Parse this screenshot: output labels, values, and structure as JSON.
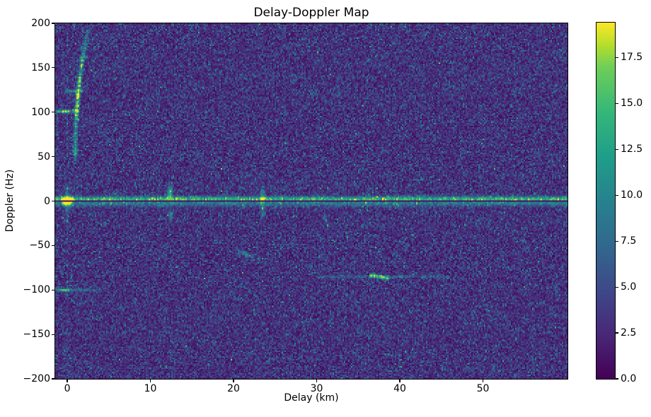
{
  "chart_data": {
    "type": "heatmap",
    "title": "Delay-Doppler Map",
    "xlabel": "Delay (km)",
    "ylabel": "Doppler (Hz)",
    "xlim": [
      -1.45,
      60.17
    ],
    "ylim": [
      -200,
      200
    ],
    "x_ticks": [
      0,
      10,
      20,
      30,
      40,
      50
    ],
    "x_tick_labels": [
      "0",
      "10",
      "20",
      "30",
      "40",
      "50"
    ],
    "y_ticks": [
      200,
      150,
      100,
      50,
      0,
      -50,
      -100,
      -150,
      -200
    ],
    "y_tick_labels": [
      "200",
      "150",
      "100",
      "50",
      "0",
      "−50",
      "−100",
      "−150",
      "−200"
    ],
    "colorbar": {
      "colormap": "viridis",
      "vmin": 0.0,
      "vmax": 19.4,
      "ticks": [
        0.0,
        2.5,
        5.0,
        7.5,
        10.0,
        12.5,
        15.0,
        17.5
      ],
      "tick_labels": [
        "0.0",
        "2.5",
        "5.0",
        "7.5",
        "10.0",
        "12.5",
        "15.0",
        "17.5"
      ]
    },
    "colormap_stops": [
      {
        "t": 0.0,
        "color": "#440154"
      },
      {
        "t": 0.125,
        "color": "#482878"
      },
      {
        "t": 0.25,
        "color": "#3e4989"
      },
      {
        "t": 0.375,
        "color": "#31688e"
      },
      {
        "t": 0.5,
        "color": "#26828e"
      },
      {
        "t": 0.625,
        "color": "#1f9e89"
      },
      {
        "t": 0.75,
        "color": "#35b779"
      },
      {
        "t": 0.875,
        "color": "#6ece58"
      },
      {
        "t": 0.9375,
        "color": "#b5de2b"
      },
      {
        "t": 1.0,
        "color": "#fde725"
      }
    ],
    "grid": {
      "nx": 362,
      "ny": 253
    },
    "noise": {
      "type": "erlang3",
      "theta": 1.15,
      "seed": 7,
      "mean_level": 3.4
    },
    "features": [
      {
        "type": "zero_line",
        "doppler": 0,
        "amp": 10.5,
        "dark_value": 0.9,
        "desc": "bright zero-Doppler clutter ridge across all delays with dark suppressed center line"
      },
      {
        "type": "blob",
        "delay": 0,
        "doppler": 0,
        "sx": 0.35,
        "sy": 2.2,
        "amp": 19.4,
        "desc": "direct-path peak at zero delay / zero Doppler (saturated yellow)"
      },
      {
        "type": "blob",
        "delay": 0,
        "doppler": 0,
        "sx": 0.22,
        "sy": 10,
        "amp": 5.5,
        "desc": "Doppler sidelobe smear of direct path"
      },
      {
        "type": "speckle_column",
        "delay": 0,
        "amp": 1.8,
        "prob": 0.1,
        "spike": 3.5,
        "desc": "faint elevated column at zero delay"
      },
      {
        "type": "arc",
        "delay0": 0.95,
        "delay_span": 1.55,
        "doppler0": 45,
        "doppler1": 193,
        "curve_pow": 2.2,
        "sigma_km": 0.16,
        "amp_core": 13.5,
        "core": [
          95,
          140
        ],
        "amp_tail": 8.5,
        "desc": "curved target echo arc from (1 km, +45 Hz) to (2.5 km, +193 Hz), brightest +95..+140 Hz"
      },
      {
        "type": "line_h",
        "doppler": 101,
        "x0": -1.4,
        "x1": 1.3,
        "sy": 1.3,
        "amp": 7,
        "desc": "horizontal streak at +100 Hz near zero delay"
      },
      {
        "type": "blob",
        "delay": -0.4,
        "doppler": 101,
        "sx": 0.35,
        "sy": 1.4,
        "amp": 10,
        "desc": "bright spot at +100 Hz"
      },
      {
        "type": "line_h",
        "doppler": 124,
        "x0": -0.2,
        "x1": 1.8,
        "sy": 1.3,
        "amp": 5.5,
        "desc": "faint streak at +125 Hz"
      },
      {
        "type": "blob",
        "delay": 12.35,
        "doppler": 9,
        "sx": 0.22,
        "sy": 5.5,
        "amp": 11.5,
        "desc": "target echo at 12.3 km, +2..+18 Hz"
      },
      {
        "type": "blob",
        "delay": 12.45,
        "doppler": -16,
        "sx": 0.2,
        "sy": 4.5,
        "amp": 6.5,
        "desc": "weaker echo at 12.4 km, -16 Hz"
      },
      {
        "type": "blob",
        "delay": 23.45,
        "doppler": 3,
        "sx": 0.18,
        "sy": 6.5,
        "amp": 10,
        "desc": "echo at 23.5 km crossing zero line"
      },
      {
        "type": "blob",
        "delay": 23.5,
        "doppler": -13,
        "sx": 0.18,
        "sy": 4,
        "amp": 5.5,
        "desc": "faint echo at 23.5 km, -13 Hz"
      },
      {
        "type": "diag",
        "x0": 20.6,
        "y0": -57,
        "x1": 22.4,
        "y1": -63,
        "width_hz": 1.6,
        "amp": 5,
        "desc": "very faint diagonal streak near 21 km, -60 Hz"
      },
      {
        "type": "diag",
        "x0": 30.9,
        "y0": -13,
        "x1": 31.3,
        "y1": -27,
        "width_hz": 1.6,
        "amp": 6,
        "desc": "faint tilted streak at 31 km, -13..-27 Hz"
      },
      {
        "type": "diag",
        "x0": 36.4,
        "y0": -83,
        "x1": 38.6,
        "y1": -87,
        "width_hz": 1.5,
        "amp": 10.5,
        "desc": "bright tilted streak at 36.5-38.5 km, -85 Hz"
      },
      {
        "type": "line_h",
        "doppler": -85,
        "x0": 30,
        "x1": 46,
        "sy": 1.1,
        "amp": 3,
        "desc": "very faint line at -85 Hz"
      },
      {
        "type": "blob",
        "delay": -0.4,
        "doppler": -100,
        "sx": 0.55,
        "sy": 1.3,
        "amp": 10.5,
        "desc": "bright short streak at -100 Hz near zero delay"
      },
      {
        "type": "line_h",
        "doppler": -100,
        "x0": -1.4,
        "x1": 4,
        "sy": 1.1,
        "amp": 4,
        "desc": "faint line at -100 Hz"
      }
    ]
  }
}
